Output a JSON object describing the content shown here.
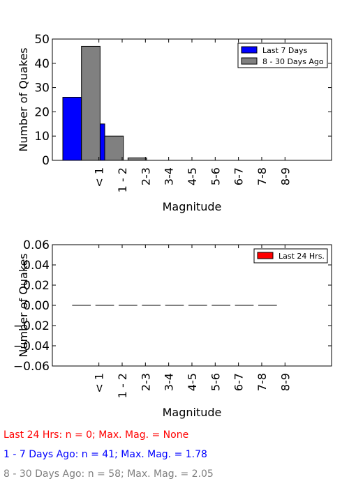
{
  "chart_data": [
    {
      "type": "bar",
      "ylabel": "Number of Quakes",
      "xlabel": "Magnitude",
      "categories": [
        "< 1",
        "1 - 2",
        "2-3",
        "3-4",
        "4-5",
        "5-6",
        "6-7",
        "7-8",
        "8-9"
      ],
      "yticks": [
        "0",
        "10",
        "20",
        "30",
        "40",
        "50"
      ],
      "ylim": [
        0,
        50
      ],
      "legend_position": "top-right",
      "series": [
        {
          "name": "Last 7 Days",
          "color": "#0000ff",
          "values": [
            26,
            15,
            0,
            0,
            0,
            0,
            0,
            0,
            0
          ]
        },
        {
          "name": "8 - 30 Days Ago",
          "color": "#808080",
          "values": [
            47,
            10,
            1,
            0,
            0,
            0,
            0,
            0,
            0
          ]
        }
      ]
    },
    {
      "type": "bar",
      "ylabel": "Number of Quakes",
      "xlabel": "Magnitude",
      "categories": [
        "< 1",
        "1 - 2",
        "2-3",
        "3-4",
        "4-5",
        "5-6",
        "6-7",
        "7-8",
        "8-9"
      ],
      "yticks": [
        "0.06",
        "0.04",
        "0.02",
        "0.00",
        "−0.02",
        "−0.04",
        "−0.06"
      ],
      "ylim": [
        -0.06,
        0.06
      ],
      "legend_position": "top-right",
      "series": [
        {
          "name": "Last 24 Hrs.",
          "color": "#ff0000",
          "values": [
            0,
            0,
            0,
            0,
            0,
            0,
            0,
            0,
            0
          ]
        }
      ]
    }
  ],
  "summary": {
    "line1": {
      "text": "Last 24 Hrs: n = 0; Max. Mag. = None",
      "color": "#ff0000"
    },
    "line2": {
      "text": "1 - 7 Days Ago: n = 41; Max. Mag. = 1.78",
      "color": "#0000ff"
    },
    "line3": {
      "text": "8 - 30 Days Ago: n = 58; Max. Mag. = 2.05",
      "color": "#808080"
    }
  }
}
